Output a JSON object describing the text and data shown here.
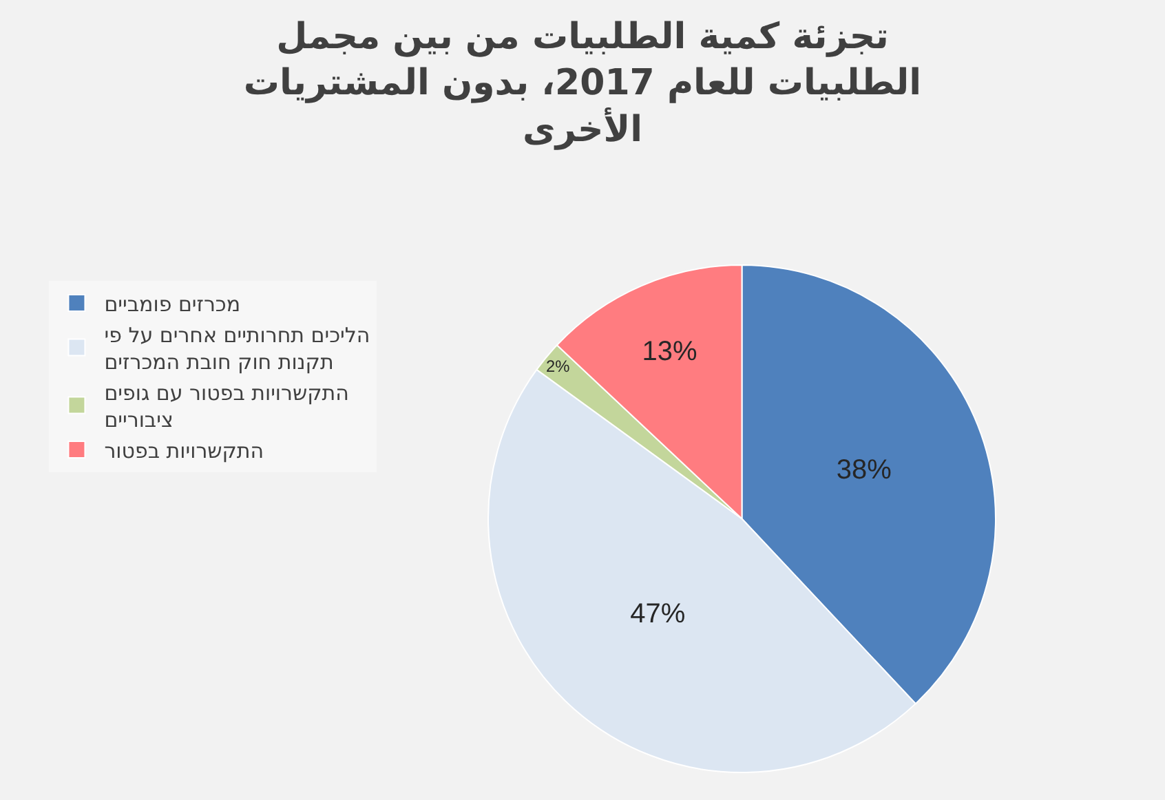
{
  "chart_data": {
    "type": "pie",
    "title": "تجزئة كمية الطلبيات من بين مجمل الطلبيات للعام 2017، بدون المشتريات الأخرى",
    "categories": [
      "מכרזים פומביים",
      "הליכים תחרותיים אחרים על פי תקנות חוק חובת המכרזים",
      "התקשרויות בפטור עם גופים ציבוריים",
      "התקשרויות בפטור"
    ],
    "values": [
      38,
      47,
      2,
      13
    ],
    "colors": [
      "#4f81bd",
      "#dce6f2",
      "#c3d69b",
      "#ff7c80"
    ],
    "value_labels": [
      "38%",
      "47%",
      "2%",
      "13%"
    ],
    "legend": "left"
  }
}
